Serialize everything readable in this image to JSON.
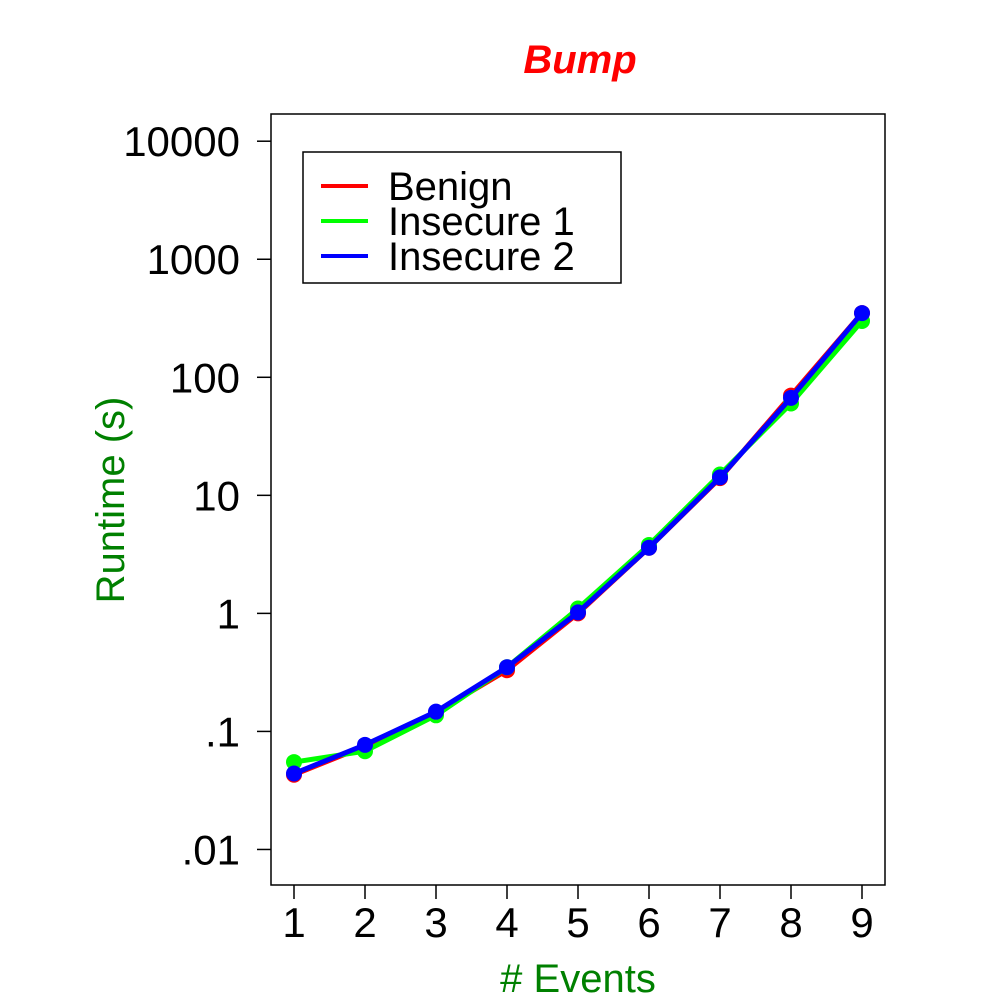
{
  "chart_data": {
    "type": "line",
    "title": "Bump",
    "xlabel": "# Events",
    "ylabel": "Runtime (s)",
    "x": [
      1,
      2,
      3,
      4,
      5,
      6,
      7,
      8,
      9
    ],
    "x_ticks": [
      "1",
      "2",
      "3",
      "4",
      "5",
      "6",
      "7",
      "8",
      "9"
    ],
    "y_scale": "log",
    "ylim": [
      0.005,
      17000
    ],
    "y_ticks": [
      {
        "value": 0.01,
        "label": ".01"
      },
      {
        "value": 0.1,
        "label": ".1"
      },
      {
        "value": 1,
        "label": "1"
      },
      {
        "value": 10,
        "label": "10"
      },
      {
        "value": 100,
        "label": "100"
      },
      {
        "value": 1000,
        "label": "1000"
      },
      {
        "value": 10000,
        "label": "10000"
      }
    ],
    "grid": false,
    "legend_position": "top-left",
    "series": [
      {
        "name": "Benign",
        "color": "#ff0000",
        "values": [
          0.043,
          0.075,
          0.145,
          0.33,
          1.0,
          3.6,
          14.0,
          70,
          350
        ]
      },
      {
        "name": "Insecure 1",
        "color": "#00ff00",
        "values": [
          0.055,
          0.068,
          0.137,
          0.35,
          1.1,
          3.8,
          15.0,
          60,
          300
        ]
      },
      {
        "name": "Insecure 2",
        "color": "#0000ff",
        "values": [
          0.044,
          0.077,
          0.147,
          0.35,
          1.02,
          3.6,
          14.2,
          67,
          350
        ]
      }
    ],
    "colors": {
      "title": "#ff0000",
      "axis_titles": "#008000"
    }
  }
}
